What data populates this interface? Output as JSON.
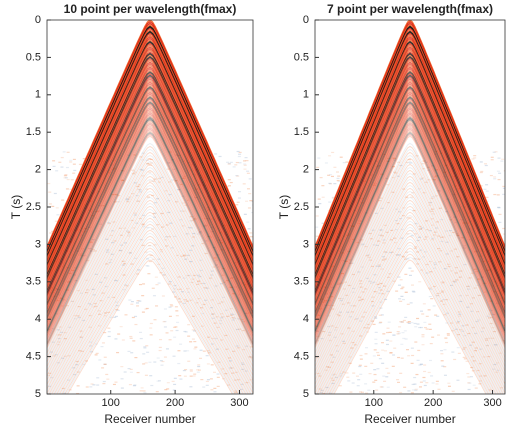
{
  "chart_data": [
    {
      "type": "image",
      "title": "10 point per wavelength(fmax)",
      "xlabel": "Receiver number",
      "ylabel": "T (s)",
      "xlim": [
        1,
        321
      ],
      "ylim": [
        0,
        5
      ],
      "y_reversed": true,
      "xticks": [
        100,
        200,
        300
      ],
      "yticks": [
        0,
        0.5,
        1,
        1.5,
        2,
        2.5,
        3,
        3.5,
        4,
        4.5,
        5
      ]
    },
    {
      "type": "image",
      "title": "7 point per wavelength(fmax)",
      "xlabel": "Receiver number",
      "ylabel": "T (s)",
      "xlim": [
        1,
        321
      ],
      "ylim": [
        0,
        5
      ],
      "y_reversed": true,
      "xticks": [
        100,
        200,
        300
      ],
      "yticks": [
        0,
        0.5,
        1,
        1.5,
        2,
        2.5,
        3,
        3.5,
        4,
        4.5,
        5
      ]
    }
  ]
}
